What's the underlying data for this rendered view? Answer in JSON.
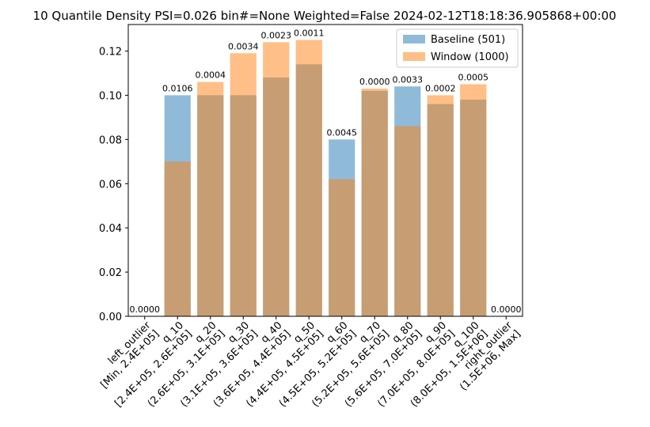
{
  "chart_data": {
    "type": "bar",
    "title": "10 Quantile Density PSI=0.026 bin#=None Weighted=False 2024-02-12T18:18:36.905868+00:00",
    "xlabel": "",
    "ylabel": "",
    "ylim": [
      0,
      0.132
    ],
    "yticks": [
      "0.00",
      "0.02",
      "0.04",
      "0.06",
      "0.08",
      "0.10",
      "0.12"
    ],
    "grid": false,
    "legend_position": "top-right",
    "categories": [
      "left_outlier\n[Min, 2.4E+05]",
      "q_10\n[2.4E+05, 2.6E+05]",
      "q_20\n(2.6E+05, 3.1E+05]",
      "q_30\n(3.1E+05, 3.6E+05]",
      "q_40\n(3.6E+05, 4.4E+05]",
      "q_50\n(4.4E+05, 4.5E+05]",
      "q_60\n(4.5E+05, 5.2E+05]",
      "q_70\n(5.2E+05, 5.6E+05]",
      "q_80\n(5.6E+05, 7.0E+05]",
      "q_90\n(7.0E+05, 8.0E+05]",
      "q_100\n(8.0E+05, 1.5E+06]",
      "right_outlier\n(1.5E+06, Max]"
    ],
    "series": [
      {
        "name": "Baseline (501)",
        "color": "#1f77b4",
        "values": [
          0,
          0.1,
          0.1,
          0.1,
          0.108,
          0.114,
          0.08,
          0.102,
          0.104,
          0.096,
          0.098,
          0
        ]
      },
      {
        "name": "Window (1000)",
        "color": "#ff7f0e",
        "values": [
          0,
          0.07,
          0.106,
          0.119,
          0.124,
          0.125,
          0.062,
          0.103,
          0.086,
          0.1,
          0.105,
          0
        ]
      }
    ],
    "psi_labels": [
      "0.0000",
      "0.0106",
      "0.0004",
      "0.0034",
      "0.0023",
      "0.0011",
      "0.0045",
      "0.0000",
      "0.0033",
      "0.0002",
      "0.0005",
      "0.0000"
    ]
  }
}
